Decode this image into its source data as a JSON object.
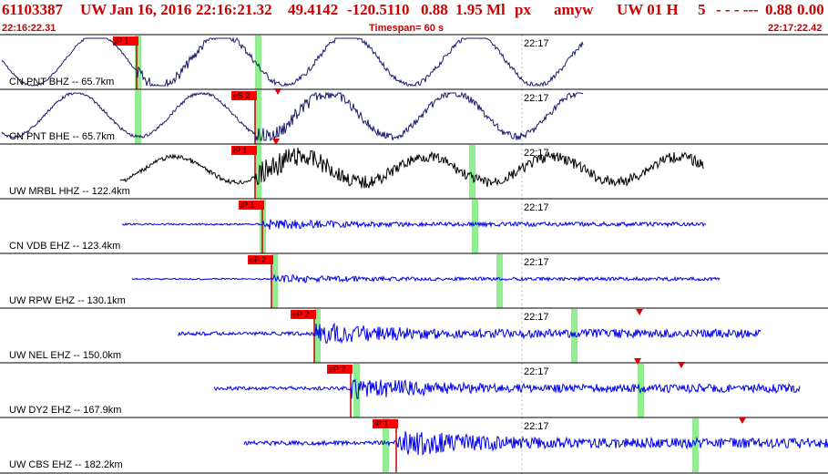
{
  "header": {
    "event_id": "61103387",
    "network": "UW",
    "date": "Jan 16, 2016",
    "time": "22:16:21.32",
    "lat": "49.4142",
    "lon": "-120.5110",
    "depth": "0.88",
    "magnitude": "1.95 Ml",
    "type": "px",
    "analyst": "amyw",
    "source": "UW 01 H",
    "quality": "5",
    "flags": "-  -  - ---",
    "rms": "0.88",
    "extra": "0.00"
  },
  "subheader": {
    "start_time": "22:16:22.31",
    "timespan": "Timespan=  60 s",
    "end_time": "22:17:22.42"
  },
  "minute_label": "22:17",
  "colors": {
    "header": "#cc0000",
    "trace_blue": "#0000ee",
    "trace_navy": "#1a1a6e",
    "pick_box": "#ff0000",
    "window": "#90ee90"
  },
  "traces": [
    {
      "label": "CN PNT BHZ -- 65.7km",
      "pick": "iP 1",
      "color": "navy"
    },
    {
      "label": "CN PNT BHE -- 65.7km",
      "pick": "eS 2",
      "color": "navy"
    },
    {
      "label": "UW MRBL HHZ -- 122.4km",
      "pick": "iP 1",
      "color": "black"
    },
    {
      "label": "CN VDB EHZ -- 123.4km",
      "pick": "iP 1",
      "color": "blue"
    },
    {
      "label": "UW RPW EHZ -- 130.1km",
      "pick": "eP 2",
      "color": "blue"
    },
    {
      "label": "UW NEL EHZ -- 150.0km",
      "pick": "eP 2",
      "color": "blue"
    },
    {
      "label": "UW DY2 EHZ -- 167.9km",
      "pick": "eP 2",
      "color": "blue"
    },
    {
      "label": "UW CBS EHZ -- 182.2km",
      "pick": "iP 1",
      "color": "blue"
    }
  ]
}
